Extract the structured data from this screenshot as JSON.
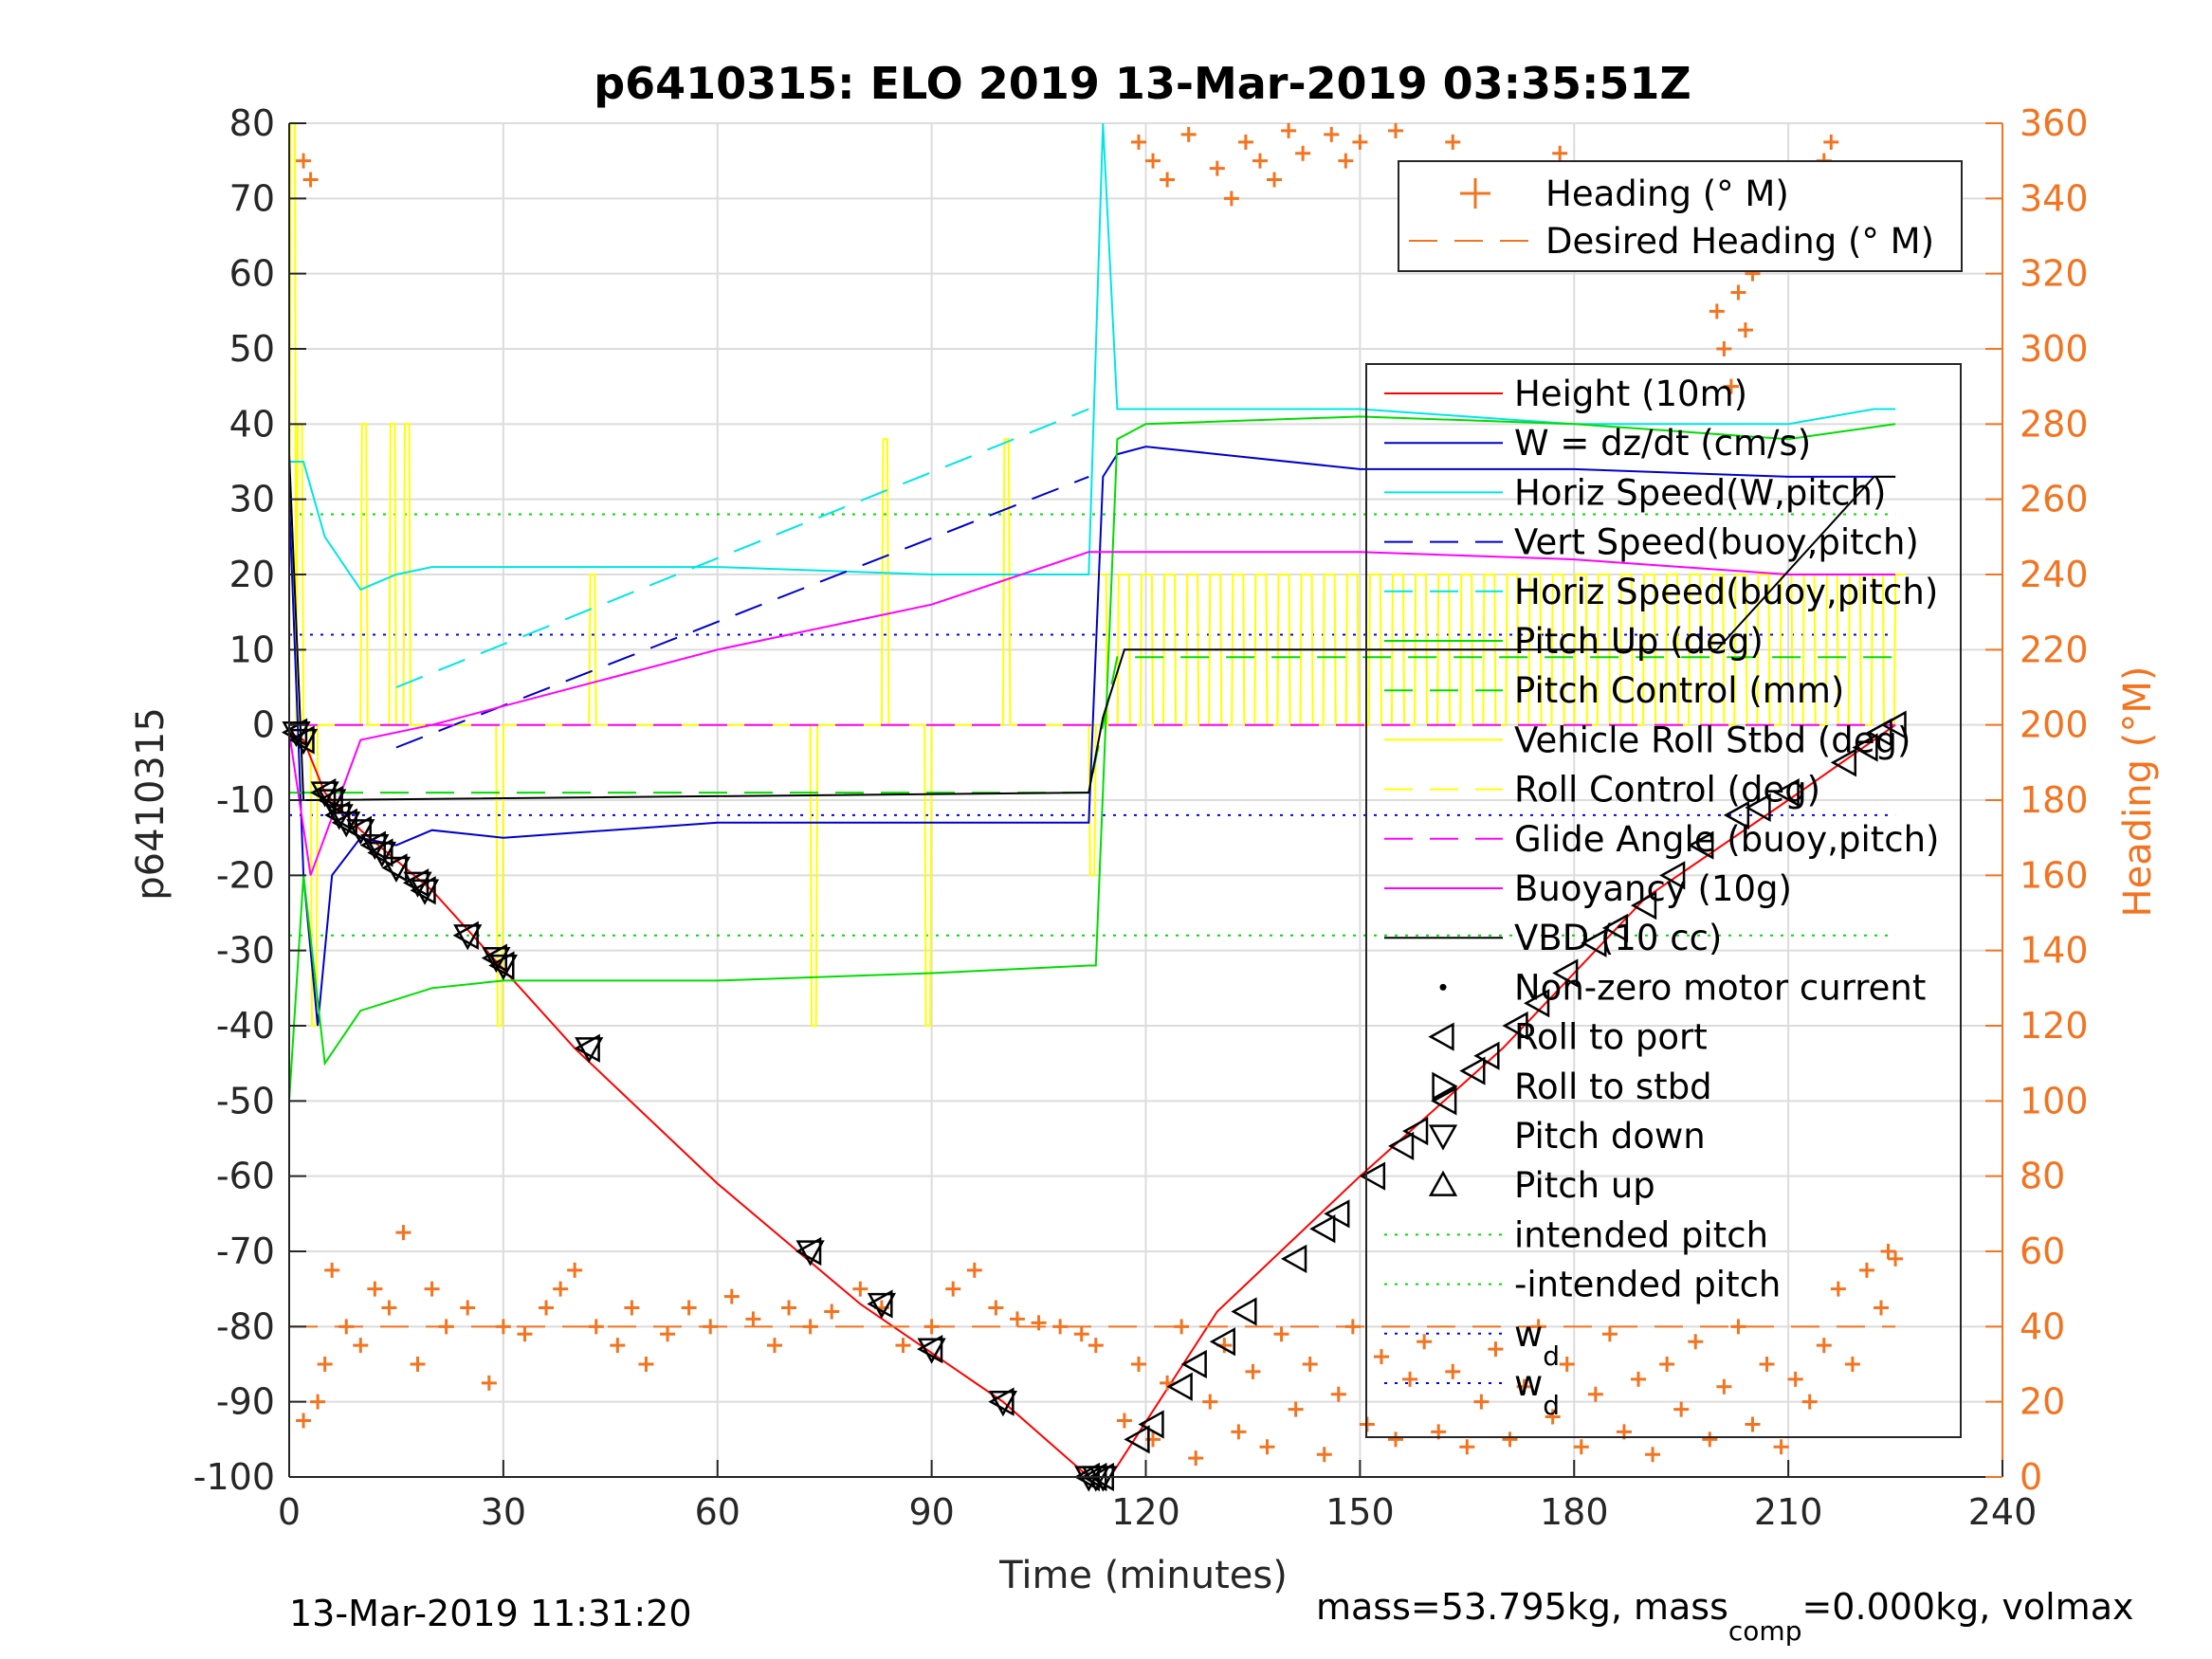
{
  "chart_data": {
    "type": "line",
    "title": "p6410315: ELO 2019 13-Mar-2019 03:35:51Z",
    "xlabel": "Time (minutes)",
    "ylabel": "p6410315",
    "y2label": "Heading (°M)",
    "xlim": [
      0,
      240
    ],
    "ylim": [
      -100,
      80
    ],
    "y2lim": [
      0,
      360
    ],
    "xticks": [
      "0",
      "30",
      "60",
      "90",
      "120",
      "150",
      "180",
      "210",
      "240"
    ],
    "yticks": [
      "80",
      "70",
      "60",
      "50",
      "40",
      "30",
      "20",
      "10",
      "0",
      "-10",
      "-20",
      "-30",
      "-40",
      "-50",
      "-60",
      "-70",
      "-80",
      "-90",
      "-100"
    ],
    "y2ticks": [
      "360",
      "340",
      "320",
      "300",
      "280",
      "260",
      "240",
      "220",
      "200",
      "180",
      "160",
      "140",
      "120",
      "100",
      "80",
      "60",
      "40",
      "20",
      "0"
    ],
    "grid": true,
    "legend_top": {
      "entries": [
        "Heading (° M)",
        "Desired Heading (° M)"
      ]
    },
    "legend_main": {
      "entries": [
        "Height (10m)",
        "W = dz/dt (cm/s)",
        "Horiz Speed(W,pitch)",
        "Vert Speed(buoy,pitch)",
        "Horiz Speed(buoy,pitch)",
        "Pitch Up (deg)",
        "Pitch Control (mm)",
        "Vehicle Roll Stbd (deg)",
        "Roll Control (deg)",
        "Glide Angle (buoy,pitch)",
        "Buoyancy (10g)",
        "VBD (10 cc)",
        "Non-zero motor current",
        "Roll to port",
        "Roll to stbd",
        "Pitch down",
        "Pitch up",
        "intended pitch",
        "-intended pitch"
      ],
      "wd_label": "w",
      "wd_sub": "d"
    },
    "colors": {
      "height": "#ff0000",
      "w": "#0000cc",
      "horiz_w": "#00e5e5",
      "vert_buoy": "#0000cc",
      "horiz_buoy": "#00e5e5",
      "pitch": "#00dd00",
      "pitch_ctrl": "#00dd00",
      "roll": "#ffff00",
      "roll_ctrl": "#ffff00",
      "glide": "#ff00ff",
      "buoy": "#ff00ff",
      "vbd": "#000000",
      "intended": "#00dd00",
      "wd": "#0000ff",
      "heading": "#F27420",
      "grid": "#dcdcdc"
    },
    "series": [
      {
        "name": "Height (10m)",
        "x": [
          0,
          2,
          5,
          10,
          20,
          40,
          60,
          80,
          100,
          112,
          115,
          130,
          150,
          170,
          190,
          210,
          225
        ],
        "y": [
          -1,
          -2,
          -9,
          -14,
          -22,
          -43,
          -61,
          -77,
          -90,
          -100,
          -100,
          -78,
          -60,
          -43,
          -23,
          -10,
          0
        ]
      },
      {
        "name": "W = dz/dt (cm/s)",
        "x": [
          0,
          2,
          4,
          6,
          10,
          15,
          20,
          30,
          60,
          90,
          112,
          114,
          116,
          120,
          150,
          180,
          210,
          222,
          225
        ],
        "y": [
          30,
          -20,
          -40,
          -20,
          -15,
          -16,
          -14,
          -15,
          -13,
          -13,
          -13,
          33,
          36,
          37,
          34,
          34,
          33,
          33,
          33
        ]
      },
      {
        "name": "Horiz Speed(W,pitch)",
        "x": [
          0,
          2,
          5,
          10,
          15,
          20,
          30,
          60,
          90,
          112,
          114,
          116,
          120,
          150,
          180,
          210,
          222,
          225
        ],
        "y": [
          35,
          35,
          25,
          18,
          20,
          21,
          21,
          21,
          20,
          20,
          80,
          42,
          42,
          42,
          40,
          40,
          42,
          42
        ]
      },
      {
        "name": "Vert Speed(buoy,pitch)",
        "x": [
          15,
          112
        ],
        "y": [
          -3,
          33
        ]
      },
      {
        "name": "Horiz Speed(buoy,pitch)",
        "x": [
          15,
          112
        ],
        "y": [
          5,
          42
        ]
      },
      {
        "name": "Pitch Up (deg)",
        "x": [
          0,
          2,
          5,
          10,
          20,
          30,
          60,
          90,
          112,
          113,
          116,
          120,
          150,
          180,
          210,
          225
        ],
        "y": [
          -50,
          -20,
          -45,
          -38,
          -35,
          -34,
          -34,
          -33,
          -32,
          -32,
          38,
          40,
          41,
          40,
          38,
          40
        ]
      },
      {
        "name": "Pitch Control (mm)",
        "x": [
          0,
          5,
          112,
          116,
          225
        ],
        "y": [
          -9,
          -9,
          -9,
          9,
          9
        ]
      },
      {
        "name": "Glide Angle (buoy,pitch)",
        "x": [
          0,
          112,
          225
        ],
        "y": [
          0,
          0,
          0
        ]
      },
      {
        "name": "Buoyancy (10g)",
        "x": [
          0,
          3,
          10,
          20,
          60,
          90,
          112,
          120,
          150,
          180,
          210,
          225
        ],
        "y": [
          -1,
          -20,
          -2,
          0,
          10,
          16,
          23,
          23,
          23,
          22,
          20,
          20
        ]
      },
      {
        "name": "VBD (10 cc)",
        "x": [
          0,
          2,
          3,
          112,
          114,
          117,
          150,
          200,
          222,
          225
        ],
        "y": [
          36,
          -10,
          -10,
          -9,
          1,
          10,
          10,
          10,
          33,
          33
        ]
      },
      {
        "name": "intended pitch",
        "x": [
          0,
          225
        ],
        "y": [
          28,
          28
        ]
      },
      {
        "name": "-intended pitch",
        "x": [
          0,
          225
        ],
        "y": [
          -28,
          -28
        ]
      },
      {
        "name": "w_d",
        "x": [
          0,
          225
        ],
        "y": [
          12,
          12
        ]
      },
      {
        "name": "-w_d",
        "x": [
          0,
          225
        ],
        "y": [
          -12,
          -12
        ]
      }
    ],
    "roll_series": {
      "name": "Vehicle Roll Stbd (deg)",
      "dive": {
        "x0": 0,
        "x1": 112,
        "base": 0,
        "spikes": [
          [
            0,
            80
          ],
          [
            1,
            40
          ],
          [
            3,
            -40
          ],
          [
            10,
            40
          ],
          [
            14,
            40
          ],
          [
            16,
            40
          ],
          [
            29,
            -40
          ],
          [
            42,
            20
          ],
          [
            73,
            -40
          ],
          [
            83,
            38
          ],
          [
            89,
            -40
          ],
          [
            100,
            38
          ],
          [
            112,
            -20
          ]
        ]
      },
      "climb": {
        "x0": 113,
        "x1": 225,
        "base_low": 0,
        "base_high": 20,
        "period": 3.2
      }
    },
    "heading": {
      "name": "Heading (° M)",
      "desired": 40,
      "dive_points": [
        [
          2,
          350
        ],
        [
          3,
          345
        ],
        [
          2,
          15
        ],
        [
          4,
          20
        ],
        [
          5,
          30
        ],
        [
          6,
          55
        ],
        [
          8,
          40
        ],
        [
          10,
          35
        ],
        [
          12,
          50
        ],
        [
          14,
          45
        ],
        [
          16,
          65
        ],
        [
          18,
          30
        ],
        [
          20,
          50
        ],
        [
          22,
          40
        ],
        [
          25,
          45
        ],
        [
          28,
          25
        ],
        [
          30,
          40
        ],
        [
          33,
          38
        ],
        [
          36,
          45
        ],
        [
          38,
          50
        ],
        [
          40,
          55
        ],
        [
          43,
          40
        ],
        [
          46,
          35
        ],
        [
          48,
          45
        ],
        [
          50,
          30
        ],
        [
          53,
          38
        ],
        [
          56,
          45
        ],
        [
          59,
          40
        ],
        [
          62,
          48
        ],
        [
          65,
          42
        ],
        [
          68,
          35
        ],
        [
          70,
          45
        ],
        [
          73,
          40
        ],
        [
          76,
          44
        ],
        [
          80,
          50
        ],
        [
          83,
          45
        ],
        [
          86,
          35
        ],
        [
          90,
          40
        ],
        [
          93,
          50
        ],
        [
          96,
          55
        ],
        [
          99,
          45
        ],
        [
          102,
          42
        ],
        [
          105,
          41
        ],
        [
          108,
          40
        ],
        [
          111,
          38
        ],
        [
          113,
          35
        ]
      ],
      "climb_points": [
        [
          117,
          15
        ],
        [
          119,
          30
        ],
        [
          121,
          10
        ],
        [
          123,
          25
        ],
        [
          125,
          40
        ],
        [
          127,
          5
        ],
        [
          129,
          20
        ],
        [
          131,
          35
        ],
        [
          133,
          12
        ],
        [
          135,
          28
        ],
        [
          137,
          8
        ],
        [
          139,
          38
        ],
        [
          141,
          18
        ],
        [
          143,
          30
        ],
        [
          145,
          6
        ],
        [
          147,
          22
        ],
        [
          149,
          40
        ],
        [
          151,
          14
        ],
        [
          153,
          32
        ],
        [
          155,
          10
        ],
        [
          157,
          26
        ],
        [
          159,
          36
        ],
        [
          161,
          12
        ],
        [
          163,
          28
        ],
        [
          165,
          8
        ],
        [
          167,
          20
        ],
        [
          169,
          34
        ],
        [
          171,
          10
        ],
        [
          173,
          24
        ],
        [
          175,
          40
        ],
        [
          177,
          16
        ],
        [
          179,
          30
        ],
        [
          181,
          8
        ],
        [
          183,
          22
        ],
        [
          185,
          38
        ],
        [
          187,
          12
        ],
        [
          189,
          26
        ],
        [
          191,
          6
        ],
        [
          193,
          30
        ],
        [
          195,
          18
        ],
        [
          197,
          36
        ],
        [
          199,
          10
        ],
        [
          201,
          24
        ],
        [
          203,
          40
        ],
        [
          205,
          14
        ],
        [
          207,
          30
        ],
        [
          209,
          8
        ],
        [
          211,
          26
        ],
        [
          213,
          20
        ],
        [
          215,
          35
        ],
        [
          217,
          50
        ],
        [
          219,
          30
        ],
        [
          221,
          55
        ],
        [
          223,
          45
        ],
        [
          224,
          60
        ],
        [
          225,
          58
        ]
      ],
      "top_points": [
        [
          119,
          355
        ],
        [
          121,
          350
        ],
        [
          123,
          345
        ],
        [
          126,
          357
        ],
        [
          130,
          348
        ],
        [
          132,
          340
        ],
        [
          134,
          355
        ],
        [
          136,
          350
        ],
        [
          138,
          345
        ],
        [
          140,
          358
        ],
        [
          142,
          352
        ],
        [
          146,
          357
        ],
        [
          148,
          350
        ],
        [
          150,
          355
        ],
        [
          155,
          358
        ],
        [
          163,
          355
        ],
        [
          178,
          352
        ],
        [
          195,
          348
        ],
        [
          197,
          340
        ],
        [
          199,
          330
        ],
        [
          200,
          310
        ],
        [
          201,
          300
        ],
        [
          202,
          290
        ],
        [
          203,
          315
        ],
        [
          204,
          305
        ],
        [
          205,
          320
        ],
        [
          212,
          345
        ],
        [
          213,
          335
        ],
        [
          214,
          325
        ],
        [
          215,
          350
        ],
        [
          216,
          355
        ],
        [
          217,
          345
        ]
      ]
    },
    "markers": {
      "dive": [
        [
          1,
          -1
        ],
        [
          2,
          -2
        ],
        [
          5,
          -9
        ],
        [
          6,
          -10
        ],
        [
          7,
          -12
        ],
        [
          8,
          -13
        ],
        [
          10,
          -14
        ],
        [
          12,
          -16
        ],
        [
          13,
          -17
        ],
        [
          15,
          -19
        ],
        [
          18,
          -21
        ],
        [
          19,
          -22
        ],
        [
          25,
          -28
        ],
        [
          29,
          -31
        ],
        [
          30,
          -32
        ],
        [
          42,
          -43
        ],
        [
          73,
          -70
        ],
        [
          83,
          -77
        ],
        [
          90,
          -83
        ],
        [
          100,
          -90
        ],
        [
          112,
          -100
        ],
        [
          113,
          -100
        ],
        [
          114,
          -100
        ]
      ],
      "climb": [
        [
          119,
          -95
        ],
        [
          121,
          -93
        ],
        [
          125,
          -88
        ],
        [
          127,
          -85
        ],
        [
          131,
          -82
        ],
        [
          134,
          -78
        ],
        [
          141,
          -71
        ],
        [
          145,
          -67
        ],
        [
          147,
          -65
        ],
        [
          152,
          -60
        ],
        [
          156,
          -56
        ],
        [
          158,
          -54
        ],
        [
          162,
          -50
        ],
        [
          166,
          -46
        ],
        [
          168,
          -44
        ],
        [
          172,
          -40
        ],
        [
          175,
          -37
        ],
        [
          179,
          -33
        ],
        [
          183,
          -29
        ],
        [
          186,
          -27
        ],
        [
          190,
          -24
        ],
        [
          194,
          -20
        ],
        [
          198,
          -16
        ],
        [
          203,
          -12
        ],
        [
          206,
          -11
        ],
        [
          210,
          -9
        ],
        [
          218,
          -5
        ],
        [
          221,
          -3
        ],
        [
          223,
          -1
        ],
        [
          225,
          0
        ]
      ]
    }
  },
  "footer": {
    "date": "13-Mar-2019 11:31:20",
    "mass_text_1": "mass=53.795kg, mass",
    "mass_sub": "comp",
    "mass_text_2": "=0.000kg, volmax"
  }
}
